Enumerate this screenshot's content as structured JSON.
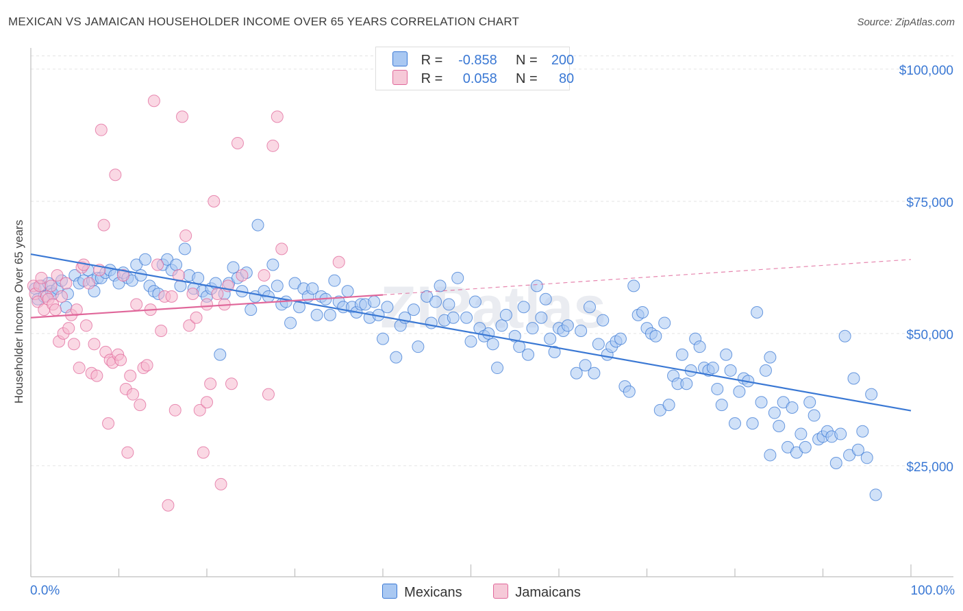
{
  "header": {
    "title": "MEXICAN VS JAMAICAN HOUSEHOLDER INCOME OVER 65 YEARS CORRELATION CHART",
    "source": "Source: ZipAtlas.com"
  },
  "colors": {
    "blue": "#3a78d4",
    "blue_fill": "#a9c8f2",
    "pink": "#e0679a",
    "pink_fill": "#f6b8cd",
    "grid": "#e3e3e3",
    "axis_text": "#3a78d4"
  },
  "legend": {
    "rows": [
      {
        "r_label": "R =",
        "r_value": "-0.858",
        "n_label": "N =",
        "n_value": "200"
      },
      {
        "r_label": "R =",
        "r_value": "0.058",
        "n_label": "N =",
        "n_value": "80"
      }
    ],
    "items": [
      "Mexicans",
      "Jamaicans"
    ]
  },
  "watermark": "ZIPatlas",
  "chart_data": {
    "type": "scatter",
    "title": "MEXICAN VS JAMAICAN HOUSEHOLDER INCOME OVER 65 YEARS CORRELATION CHART",
    "xlabel": "",
    "ylabel": "Householder Income Over 65 years",
    "xlim": [
      0,
      100
    ],
    "ylim": [
      4000,
      104000
    ],
    "x_tick_labels": [
      "0.0%",
      "100.0%"
    ],
    "y_ticks": [
      25000,
      50000,
      75000,
      100000
    ],
    "y_tick_labels": [
      "$25,000",
      "$50,000",
      "$75,000",
      "$100,000"
    ],
    "grid": true,
    "legend_position": "top-center",
    "series": [
      {
        "name": "Mexicans",
        "r": -0.858,
        "n": 200,
        "trend": {
          "x": [
            0,
            100
          ],
          "y": [
            65000,
            35400
          ]
        },
        "points": [
          [
            0.5,
            58500
          ],
          [
            0.8,
            56500
          ],
          [
            1.2,
            59000
          ],
          [
            1.5,
            57000
          ],
          [
            2.0,
            59500
          ],
          [
            2.3,
            58000
          ],
          [
            2.5,
            57500
          ],
          [
            3.0,
            58500
          ],
          [
            3.5,
            60000
          ],
          [
            4.0,
            55000
          ],
          [
            4.2,
            57500
          ],
          [
            5.0,
            61000
          ],
          [
            5.5,
            59500
          ],
          [
            6.0,
            60000
          ],
          [
            6.5,
            62000
          ],
          [
            7.0,
            60000
          ],
          [
            7.2,
            58000
          ],
          [
            7.6,
            60500
          ],
          [
            8.0,
            60500
          ],
          [
            8.5,
            61500
          ],
          [
            9.0,
            62000
          ],
          [
            9.5,
            61000
          ],
          [
            10.0,
            59500
          ],
          [
            10.5,
            61500
          ],
          [
            11.0,
            60500
          ],
          [
            11.5,
            60000
          ],
          [
            12.0,
            63000
          ],
          [
            12.5,
            61000
          ],
          [
            13.0,
            64000
          ],
          [
            13.5,
            59000
          ],
          [
            14.0,
            58000
          ],
          [
            14.5,
            57500
          ],
          [
            15.0,
            63000
          ],
          [
            15.5,
            64000
          ],
          [
            16.0,
            62000
          ],
          [
            16.5,
            63000
          ],
          [
            17.0,
            59000
          ],
          [
            17.5,
            66000
          ],
          [
            18.0,
            61000
          ],
          [
            18.5,
            58500
          ],
          [
            19.0,
            60500
          ],
          [
            19.5,
            58000
          ],
          [
            20.0,
            57000
          ],
          [
            20.5,
            58500
          ],
          [
            21.0,
            59500
          ],
          [
            21.5,
            46000
          ],
          [
            22.0,
            57500
          ],
          [
            22.5,
            59500
          ],
          [
            23.0,
            62500
          ],
          [
            23.5,
            60500
          ],
          [
            24.0,
            58000
          ],
          [
            24.5,
            61500
          ],
          [
            25.0,
            54500
          ],
          [
            25.5,
            57000
          ],
          [
            25.8,
            70500
          ],
          [
            26.5,
            58000
          ],
          [
            27.0,
            57000
          ],
          [
            27.5,
            63000
          ],
          [
            28.0,
            59000
          ],
          [
            28.5,
            55500
          ],
          [
            29.0,
            56000
          ],
          [
            29.5,
            52000
          ],
          [
            30.0,
            59500
          ],
          [
            30.5,
            55000
          ],
          [
            31.0,
            58500
          ],
          [
            31.5,
            57000
          ],
          [
            32.0,
            58500
          ],
          [
            32.5,
            53500
          ],
          [
            33.0,
            57000
          ],
          [
            33.5,
            56500
          ],
          [
            34.0,
            53500
          ],
          [
            34.5,
            60000
          ],
          [
            35.0,
            56000
          ],
          [
            35.5,
            55000
          ],
          [
            36.0,
            58000
          ],
          [
            36.5,
            55000
          ],
          [
            37.0,
            54000
          ],
          [
            37.5,
            55500
          ],
          [
            38.0,
            55500
          ],
          [
            38.5,
            53000
          ],
          [
            39.0,
            56000
          ],
          [
            39.5,
            53500
          ],
          [
            40.0,
            49000
          ],
          [
            40.5,
            55000
          ],
          [
            41.5,
            45500
          ],
          [
            42.0,
            51500
          ],
          [
            42.5,
            53000
          ],
          [
            43.5,
            54500
          ],
          [
            44.0,
            47500
          ],
          [
            45.0,
            57000
          ],
          [
            45.5,
            52000
          ],
          [
            46.0,
            56000
          ],
          [
            46.5,
            59000
          ],
          [
            47.0,
            52500
          ],
          [
            47.5,
            55500
          ],
          [
            48.0,
            53000
          ],
          [
            48.5,
            60500
          ],
          [
            49.5,
            53000
          ],
          [
            50.0,
            48500
          ],
          [
            50.5,
            56000
          ],
          [
            51.0,
            51000
          ],
          [
            51.5,
            49500
          ],
          [
            52.0,
            50000
          ],
          [
            52.5,
            48000
          ],
          [
            53.0,
            43500
          ],
          [
            53.5,
            51500
          ],
          [
            54.0,
            53500
          ],
          [
            55.0,
            49500
          ],
          [
            55.5,
            47500
          ],
          [
            56.0,
            55000
          ],
          [
            56.5,
            46000
          ],
          [
            57.0,
            51000
          ],
          [
            57.5,
            59000
          ],
          [
            58.0,
            53000
          ],
          [
            58.5,
            56500
          ],
          [
            59.0,
            49000
          ],
          [
            59.5,
            46500
          ],
          [
            60.0,
            51000
          ],
          [
            60.5,
            50500
          ],
          [
            61.0,
            51500
          ],
          [
            62.0,
            42500
          ],
          [
            62.5,
            50500
          ],
          [
            63.0,
            44000
          ],
          [
            63.5,
            55000
          ],
          [
            64.0,
            42500
          ],
          [
            64.5,
            48000
          ],
          [
            65.0,
            52500
          ],
          [
            65.5,
            46000
          ],
          [
            66.0,
            47500
          ],
          [
            66.5,
            48500
          ],
          [
            67.0,
            49000
          ],
          [
            67.5,
            40000
          ],
          [
            68.0,
            39000
          ],
          [
            68.5,
            59000
          ],
          [
            69.0,
            53500
          ],
          [
            69.5,
            54000
          ],
          [
            70.0,
            51000
          ],
          [
            70.5,
            50000
          ],
          [
            71.0,
            49500
          ],
          [
            71.5,
            35500
          ],
          [
            72.0,
            52000
          ],
          [
            72.5,
            36500
          ],
          [
            73.0,
            42000
          ],
          [
            73.5,
            40500
          ],
          [
            74.0,
            46000
          ],
          [
            74.5,
            40500
          ],
          [
            75.0,
            43000
          ],
          [
            75.5,
            49000
          ],
          [
            76.0,
            47500
          ],
          [
            76.5,
            43500
          ],
          [
            77.0,
            43000
          ],
          [
            77.5,
            43500
          ],
          [
            78.0,
            39500
          ],
          [
            78.5,
            36500
          ],
          [
            79.0,
            46000
          ],
          [
            79.5,
            43000
          ],
          [
            80.0,
            33000
          ],
          [
            80.5,
            39000
          ],
          [
            81.0,
            41500
          ],
          [
            81.5,
            41000
          ],
          [
            82.0,
            33000
          ],
          [
            82.5,
            54000
          ],
          [
            83.0,
            37000
          ],
          [
            83.5,
            43000
          ],
          [
            84.0,
            45500
          ],
          [
            84.5,
            35000
          ],
          [
            85.0,
            32500
          ],
          [
            85.5,
            37000
          ],
          [
            86.0,
            28500
          ],
          [
            86.5,
            36000
          ],
          [
            87.0,
            27500
          ],
          [
            87.5,
            31000
          ],
          [
            88.0,
            28500
          ],
          [
            88.5,
            37000
          ],
          [
            89.0,
            34500
          ],
          [
            89.5,
            30000
          ],
          [
            90.0,
            30500
          ],
          [
            90.5,
            31500
          ],
          [
            91.0,
            30500
          ],
          [
            91.5,
            25500
          ],
          [
            92.0,
            31000
          ],
          [
            92.5,
            49500
          ],
          [
            93.0,
            27000
          ],
          [
            93.5,
            41500
          ],
          [
            94.0,
            28000
          ],
          [
            94.5,
            31500
          ],
          [
            95.0,
            26500
          ],
          [
            95.5,
            38500
          ],
          [
            96.0,
            19500
          ],
          [
            84.0,
            27000
          ]
        ],
        "color": "#3a78d4"
      },
      {
        "name": "Jamaicans",
        "r": 0.058,
        "n": 80,
        "trend": {
          "x": [
            0,
            40
          ],
          "y": [
            53000,
            57300
          ]
        },
        "trend_dashed_extension": {
          "x": [
            40,
            100
          ],
          "y": [
            57300,
            64000
          ]
        },
        "points": [
          [
            0.3,
            59000
          ],
          [
            0.5,
            57500
          ],
          [
            0.8,
            56000
          ],
          [
            1.0,
            59000
          ],
          [
            1.2,
            60500
          ],
          [
            1.5,
            54500
          ],
          [
            1.8,
            57000
          ],
          [
            2.0,
            56500
          ],
          [
            2.3,
            59000
          ],
          [
            2.5,
            55500
          ],
          [
            2.8,
            54500
          ],
          [
            3.0,
            61000
          ],
          [
            3.2,
            48500
          ],
          [
            3.5,
            57000
          ],
          [
            3.7,
            50000
          ],
          [
            4.0,
            59500
          ],
          [
            4.3,
            51000
          ],
          [
            4.6,
            53500
          ],
          [
            4.9,
            48000
          ],
          [
            5.2,
            54500
          ],
          [
            5.5,
            43500
          ],
          [
            5.8,
            62500
          ],
          [
            6.0,
            63000
          ],
          [
            6.3,
            51500
          ],
          [
            6.6,
            59500
          ],
          [
            6.9,
            42500
          ],
          [
            7.2,
            48000
          ],
          [
            7.5,
            42000
          ],
          [
            7.8,
            62000
          ],
          [
            8.0,
            88500
          ],
          [
            8.3,
            70500
          ],
          [
            8.5,
            46500
          ],
          [
            8.8,
            33000
          ],
          [
            9.0,
            45000
          ],
          [
            9.3,
            44500
          ],
          [
            9.6,
            80000
          ],
          [
            9.9,
            46000
          ],
          [
            10.2,
            45000
          ],
          [
            10.5,
            61000
          ],
          [
            10.8,
            39500
          ],
          [
            11.0,
            27500
          ],
          [
            11.3,
            42000
          ],
          [
            11.6,
            38500
          ],
          [
            12.0,
            55500
          ],
          [
            12.4,
            36500
          ],
          [
            12.8,
            43500
          ],
          [
            13.2,
            44000
          ],
          [
            13.6,
            54500
          ],
          [
            14.0,
            94000
          ],
          [
            14.4,
            63000
          ],
          [
            14.8,
            50500
          ],
          [
            15.2,
            57000
          ],
          [
            15.6,
            17500
          ],
          [
            16.0,
            57000
          ],
          [
            16.4,
            35500
          ],
          [
            16.8,
            61000
          ],
          [
            17.2,
            91000
          ],
          [
            17.6,
            68500
          ],
          [
            18.0,
            51500
          ],
          [
            18.4,
            57500
          ],
          [
            18.8,
            53000
          ],
          [
            19.2,
            35500
          ],
          [
            19.6,
            27500
          ],
          [
            20.0,
            37000
          ],
          [
            20.4,
            40500
          ],
          [
            20.8,
            75000
          ],
          [
            21.2,
            57500
          ],
          [
            21.6,
            21500
          ],
          [
            22.0,
            55500
          ],
          [
            22.4,
            59000
          ],
          [
            22.8,
            40500
          ],
          [
            23.5,
            86000
          ],
          [
            24.0,
            61000
          ],
          [
            26.5,
            61000
          ],
          [
            27.0,
            38500
          ],
          [
            27.5,
            85500
          ],
          [
            28.0,
            91000
          ],
          [
            28.5,
            66000
          ],
          [
            35.0,
            63500
          ],
          [
            20.0,
            55500
          ]
        ],
        "color": "#e0679a"
      }
    ]
  }
}
